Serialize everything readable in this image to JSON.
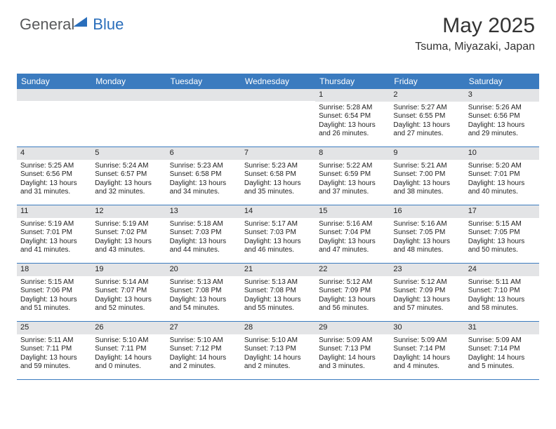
{
  "brand": {
    "part1": "General",
    "part2": "Blue"
  },
  "title": "May 2025",
  "location": "Tsuma, Miyazaki, Japan",
  "colors": {
    "header_bg": "#3b7bbf",
    "header_text": "#ffffff",
    "daynum_bg": "#e3e4e6",
    "rule": "#3b7bbf",
    "logo_gray": "#58595b",
    "logo_blue": "#2a6ebb"
  },
  "day_headers": [
    "Sunday",
    "Monday",
    "Tuesday",
    "Wednesday",
    "Thursday",
    "Friday",
    "Saturday"
  ],
  "weeks": [
    [
      {
        "n": "",
        "sr": "",
        "ss": "",
        "dl": ""
      },
      {
        "n": "",
        "sr": "",
        "ss": "",
        "dl": ""
      },
      {
        "n": "",
        "sr": "",
        "ss": "",
        "dl": ""
      },
      {
        "n": "",
        "sr": "",
        "ss": "",
        "dl": ""
      },
      {
        "n": "1",
        "sr": "Sunrise: 5:28 AM",
        "ss": "Sunset: 6:54 PM",
        "dl": "Daylight: 13 hours and 26 minutes."
      },
      {
        "n": "2",
        "sr": "Sunrise: 5:27 AM",
        "ss": "Sunset: 6:55 PM",
        "dl": "Daylight: 13 hours and 27 minutes."
      },
      {
        "n": "3",
        "sr": "Sunrise: 5:26 AM",
        "ss": "Sunset: 6:56 PM",
        "dl": "Daylight: 13 hours and 29 minutes."
      }
    ],
    [
      {
        "n": "4",
        "sr": "Sunrise: 5:25 AM",
        "ss": "Sunset: 6:56 PM",
        "dl": "Daylight: 13 hours and 31 minutes."
      },
      {
        "n": "5",
        "sr": "Sunrise: 5:24 AM",
        "ss": "Sunset: 6:57 PM",
        "dl": "Daylight: 13 hours and 32 minutes."
      },
      {
        "n": "6",
        "sr": "Sunrise: 5:23 AM",
        "ss": "Sunset: 6:58 PM",
        "dl": "Daylight: 13 hours and 34 minutes."
      },
      {
        "n": "7",
        "sr": "Sunrise: 5:23 AM",
        "ss": "Sunset: 6:58 PM",
        "dl": "Daylight: 13 hours and 35 minutes."
      },
      {
        "n": "8",
        "sr": "Sunrise: 5:22 AM",
        "ss": "Sunset: 6:59 PM",
        "dl": "Daylight: 13 hours and 37 minutes."
      },
      {
        "n": "9",
        "sr": "Sunrise: 5:21 AM",
        "ss": "Sunset: 7:00 PM",
        "dl": "Daylight: 13 hours and 38 minutes."
      },
      {
        "n": "10",
        "sr": "Sunrise: 5:20 AM",
        "ss": "Sunset: 7:01 PM",
        "dl": "Daylight: 13 hours and 40 minutes."
      }
    ],
    [
      {
        "n": "11",
        "sr": "Sunrise: 5:19 AM",
        "ss": "Sunset: 7:01 PM",
        "dl": "Daylight: 13 hours and 41 minutes."
      },
      {
        "n": "12",
        "sr": "Sunrise: 5:19 AM",
        "ss": "Sunset: 7:02 PM",
        "dl": "Daylight: 13 hours and 43 minutes."
      },
      {
        "n": "13",
        "sr": "Sunrise: 5:18 AM",
        "ss": "Sunset: 7:03 PM",
        "dl": "Daylight: 13 hours and 44 minutes."
      },
      {
        "n": "14",
        "sr": "Sunrise: 5:17 AM",
        "ss": "Sunset: 7:03 PM",
        "dl": "Daylight: 13 hours and 46 minutes."
      },
      {
        "n": "15",
        "sr": "Sunrise: 5:16 AM",
        "ss": "Sunset: 7:04 PM",
        "dl": "Daylight: 13 hours and 47 minutes."
      },
      {
        "n": "16",
        "sr": "Sunrise: 5:16 AM",
        "ss": "Sunset: 7:05 PM",
        "dl": "Daylight: 13 hours and 48 minutes."
      },
      {
        "n": "17",
        "sr": "Sunrise: 5:15 AM",
        "ss": "Sunset: 7:05 PM",
        "dl": "Daylight: 13 hours and 50 minutes."
      }
    ],
    [
      {
        "n": "18",
        "sr": "Sunrise: 5:15 AM",
        "ss": "Sunset: 7:06 PM",
        "dl": "Daylight: 13 hours and 51 minutes."
      },
      {
        "n": "19",
        "sr": "Sunrise: 5:14 AM",
        "ss": "Sunset: 7:07 PM",
        "dl": "Daylight: 13 hours and 52 minutes."
      },
      {
        "n": "20",
        "sr": "Sunrise: 5:13 AM",
        "ss": "Sunset: 7:08 PM",
        "dl": "Daylight: 13 hours and 54 minutes."
      },
      {
        "n": "21",
        "sr": "Sunrise: 5:13 AM",
        "ss": "Sunset: 7:08 PM",
        "dl": "Daylight: 13 hours and 55 minutes."
      },
      {
        "n": "22",
        "sr": "Sunrise: 5:12 AM",
        "ss": "Sunset: 7:09 PM",
        "dl": "Daylight: 13 hours and 56 minutes."
      },
      {
        "n": "23",
        "sr": "Sunrise: 5:12 AM",
        "ss": "Sunset: 7:09 PM",
        "dl": "Daylight: 13 hours and 57 minutes."
      },
      {
        "n": "24",
        "sr": "Sunrise: 5:11 AM",
        "ss": "Sunset: 7:10 PM",
        "dl": "Daylight: 13 hours and 58 minutes."
      }
    ],
    [
      {
        "n": "25",
        "sr": "Sunrise: 5:11 AM",
        "ss": "Sunset: 7:11 PM",
        "dl": "Daylight: 13 hours and 59 minutes."
      },
      {
        "n": "26",
        "sr": "Sunrise: 5:10 AM",
        "ss": "Sunset: 7:11 PM",
        "dl": "Daylight: 14 hours and 0 minutes."
      },
      {
        "n": "27",
        "sr": "Sunrise: 5:10 AM",
        "ss": "Sunset: 7:12 PM",
        "dl": "Daylight: 14 hours and 2 minutes."
      },
      {
        "n": "28",
        "sr": "Sunrise: 5:10 AM",
        "ss": "Sunset: 7:13 PM",
        "dl": "Daylight: 14 hours and 2 minutes."
      },
      {
        "n": "29",
        "sr": "Sunrise: 5:09 AM",
        "ss": "Sunset: 7:13 PM",
        "dl": "Daylight: 14 hours and 3 minutes."
      },
      {
        "n": "30",
        "sr": "Sunrise: 5:09 AM",
        "ss": "Sunset: 7:14 PM",
        "dl": "Daylight: 14 hours and 4 minutes."
      },
      {
        "n": "31",
        "sr": "Sunrise: 5:09 AM",
        "ss": "Sunset: 7:14 PM",
        "dl": "Daylight: 14 hours and 5 minutes."
      }
    ]
  ]
}
